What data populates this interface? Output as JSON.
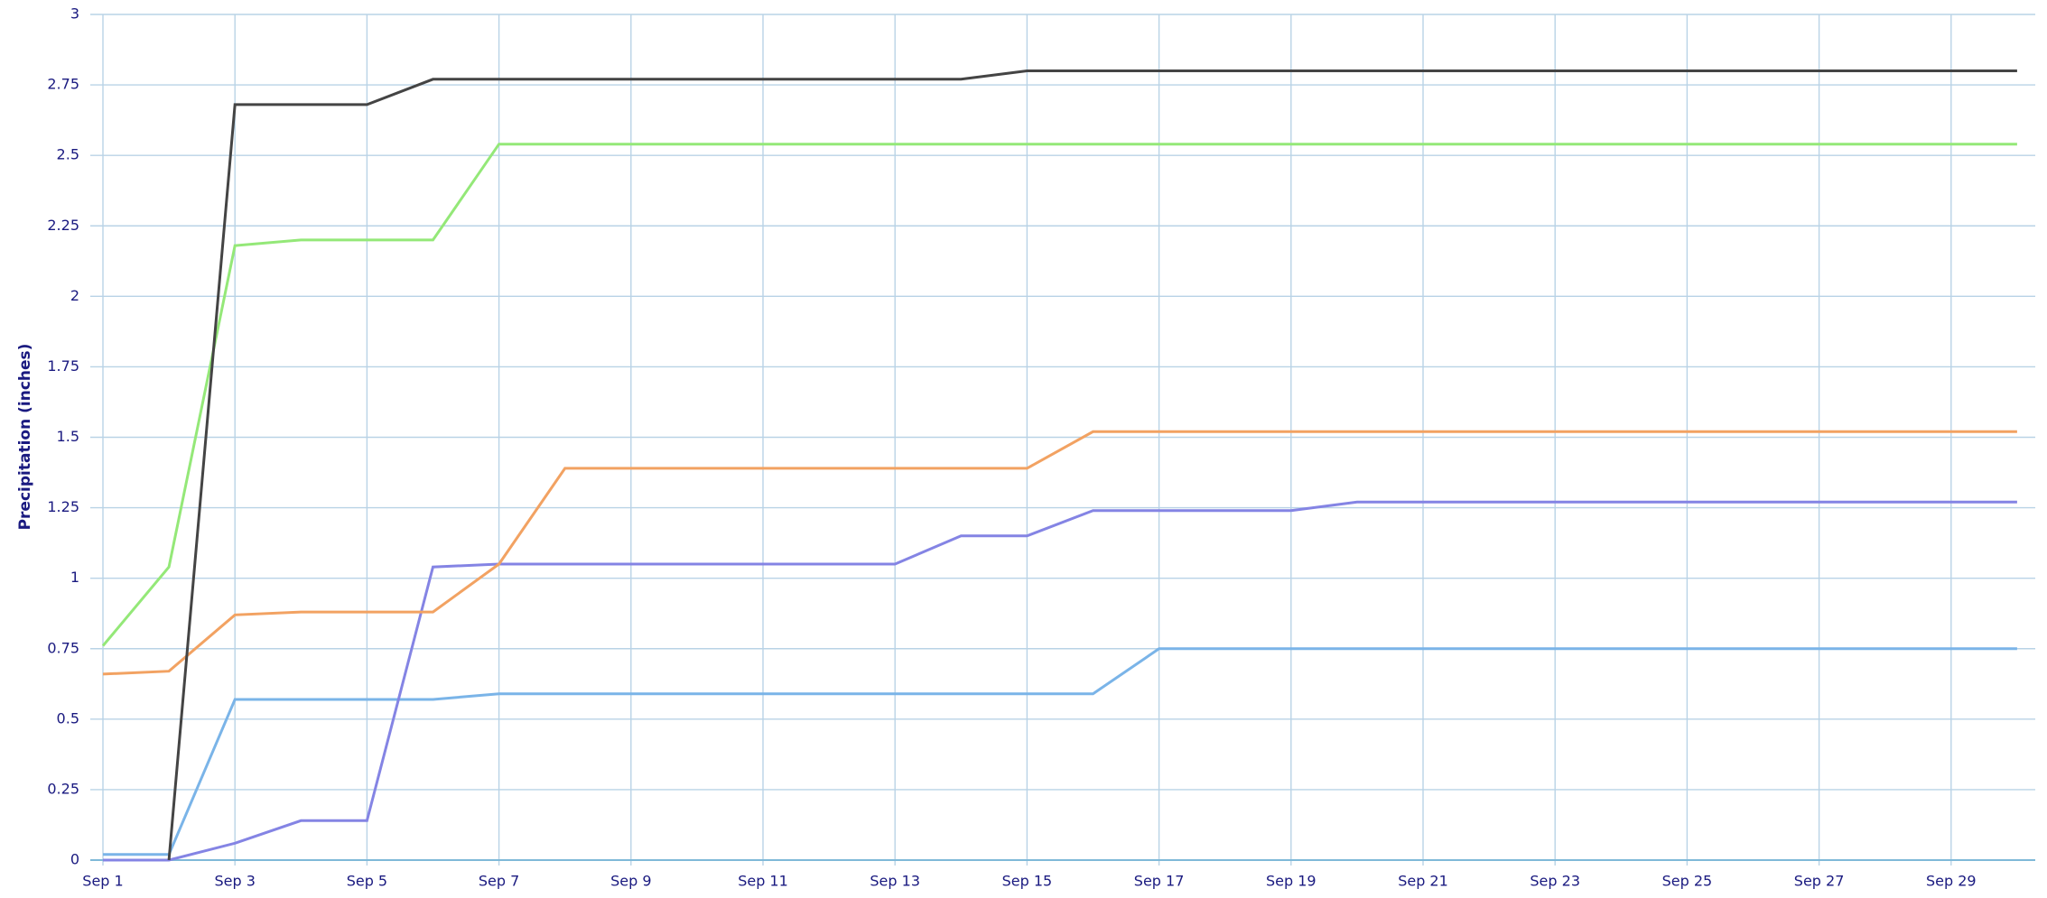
{
  "chart_data": {
    "type": "line",
    "y_label": "Precipitation (inches)",
    "categories": [
      "Sep 1",
      null,
      "Sep 3",
      null,
      "Sep 5",
      null,
      "Sep 7",
      null,
      "Sep 9",
      null,
      "Sep 11",
      null,
      "Sep 13",
      null,
      "Sep 15",
      null,
      "Sep 17",
      null,
      "Sep 19",
      null,
      "Sep 21",
      null,
      "Sep 23",
      null,
      "Sep 25",
      null,
      "Sep 27",
      null,
      "Sep 29",
      null
    ],
    "series": [
      {
        "color": "#7ab4e8",
        "values": [
          0.02,
          0.02,
          0.57,
          0.57,
          0.57,
          0.57,
          0.59,
          0.59,
          0.59,
          0.59,
          0.59,
          0.59,
          0.59,
          0.59,
          0.59,
          0.59,
          0.75,
          0.75,
          0.75,
          0.75,
          0.75,
          0.75,
          0.75,
          0.75,
          0.75,
          0.75,
          0.75,
          0.75,
          0.75,
          0.75
        ]
      },
      {
        "color": "#8484e4",
        "values": [
          0,
          0,
          0.06,
          0.14,
          0.14,
          1.04,
          1.05,
          1.05,
          1.05,
          1.05,
          1.05,
          1.05,
          1.05,
          1.15,
          1.15,
          1.24,
          1.24,
          1.24,
          1.24,
          1.27,
          1.27,
          1.27,
          1.27,
          1.27,
          1.27,
          1.27,
          1.27,
          1.27,
          1.27,
          1.27
        ]
      },
      {
        "color": "#f2a262",
        "values": [
          0.66,
          0.67,
          0.87,
          0.88,
          0.88,
          0.88,
          1.05,
          1.39,
          1.39,
          1.39,
          1.39,
          1.39,
          1.39,
          1.39,
          1.39,
          1.52,
          1.52,
          1.52,
          1.52,
          1.52,
          1.52,
          1.52,
          1.52,
          1.52,
          1.52,
          1.52,
          1.52,
          1.52,
          1.52,
          1.52
        ]
      },
      {
        "color": "#94e878",
        "values": [
          0.76,
          1.04,
          2.18,
          2.2,
          2.2,
          2.2,
          2.54,
          2.54,
          2.54,
          2.54,
          2.54,
          2.54,
          2.54,
          2.54,
          2.54,
          2.54,
          2.54,
          2.54,
          2.54,
          2.54,
          2.54,
          2.54,
          2.54,
          2.54,
          2.54,
          2.54,
          2.54,
          2.54,
          2.54,
          2.54
        ]
      },
      {
        "color": "#444444",
        "values": [
          null,
          0,
          2.68,
          2.68,
          2.68,
          2.77,
          2.77,
          2.77,
          2.77,
          2.77,
          2.77,
          2.77,
          2.77,
          2.77,
          2.8,
          2.8,
          2.8,
          2.8,
          2.8,
          2.8,
          2.8,
          2.8,
          2.8,
          2.8,
          2.8,
          2.8,
          2.8,
          2.8,
          2.8,
          2.8
        ]
      }
    ],
    "ylim": [
      0,
      3
    ],
    "yticks": [
      0,
      0.25,
      0.5,
      0.75,
      1,
      1.25,
      1.5,
      1.75,
      2,
      2.25,
      2.5,
      2.75,
      3
    ],
    "grid": true
  }
}
